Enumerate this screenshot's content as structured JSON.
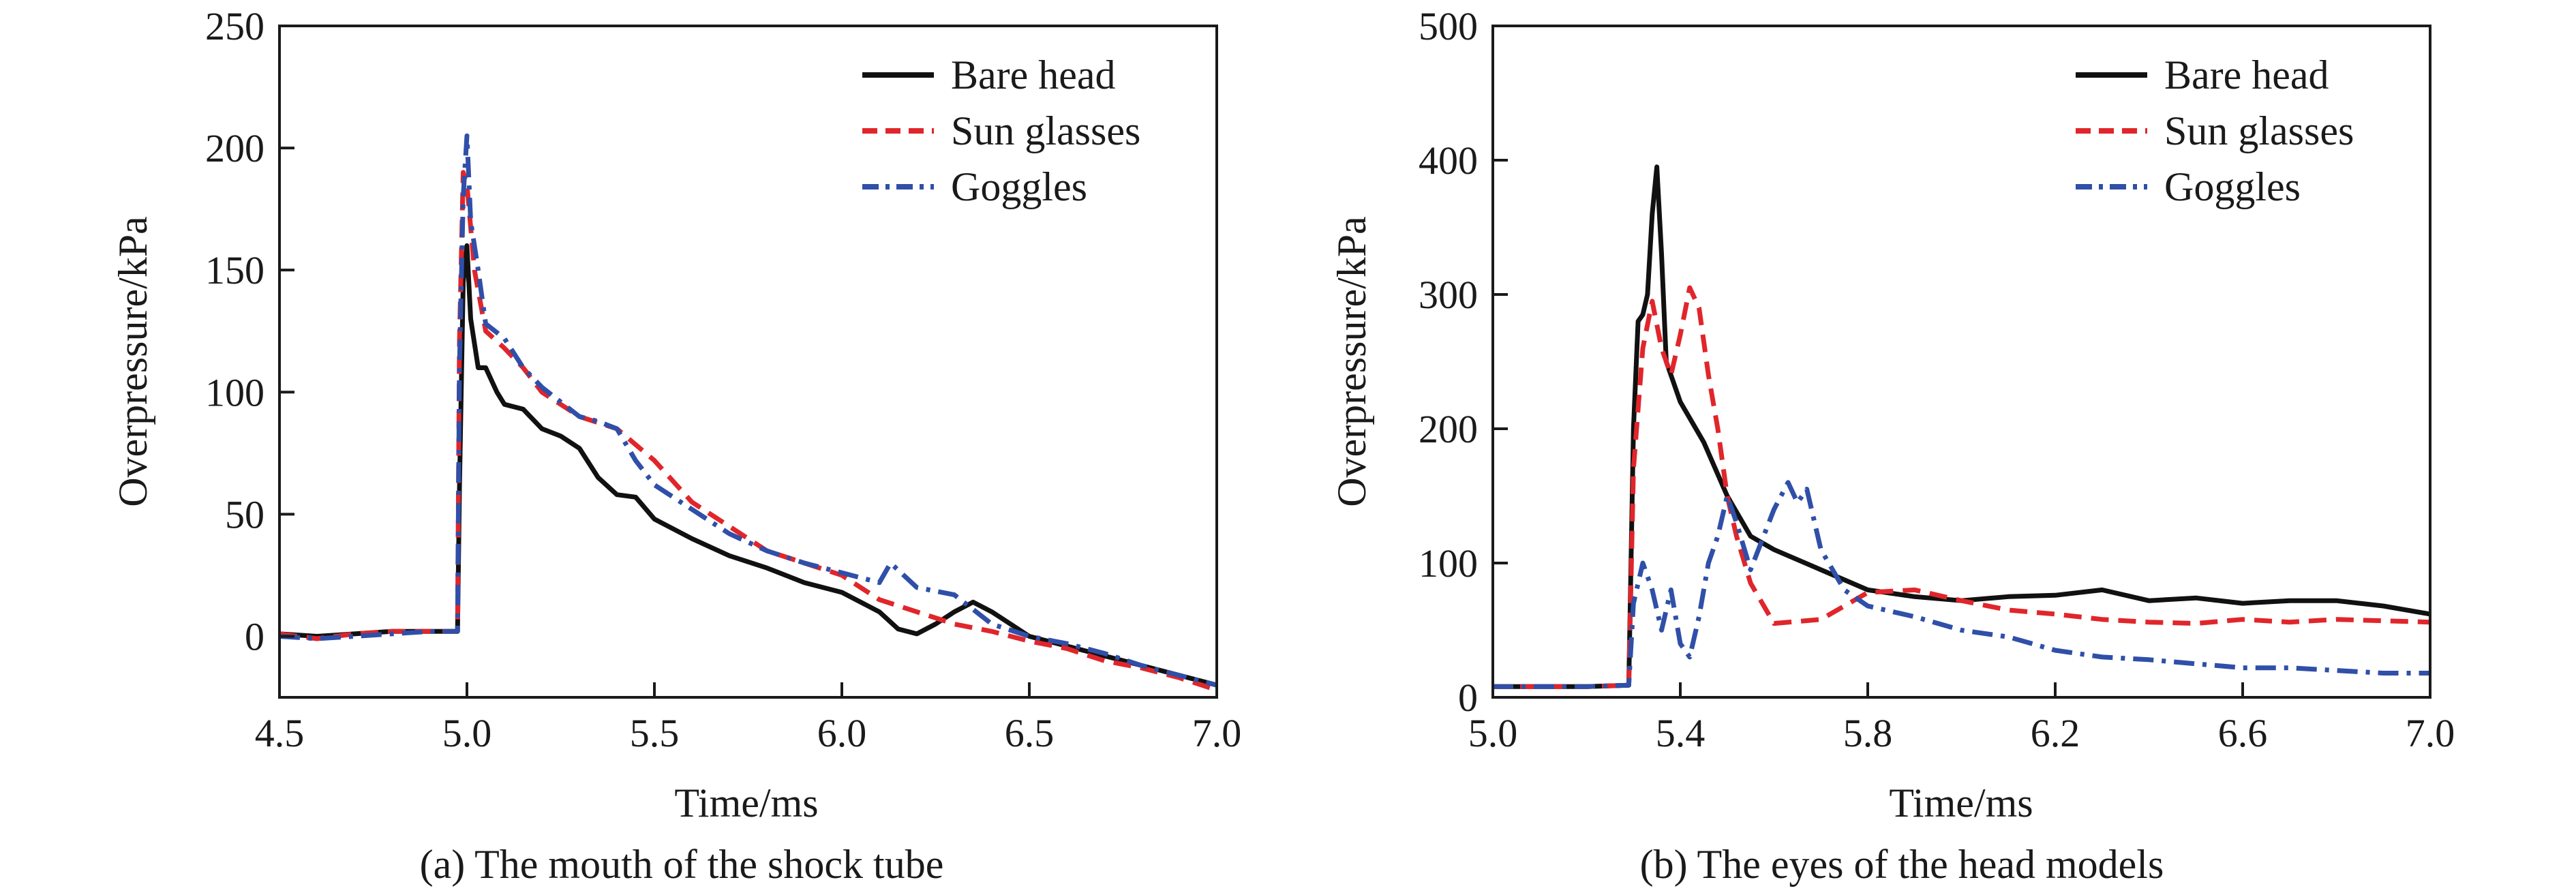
{
  "chart_data": [
    {
      "type": "line",
      "caption": "(a) The mouth of the shock tube",
      "xlabel": "Time/ms",
      "ylabel": "Overpressure/kPa",
      "xlim": [
        4.5,
        7.0
      ],
      "ylim": [
        -25,
        250
      ],
      "xticks": [
        "4.5",
        "5.0",
        "5.5",
        "6.0",
        "6.5",
        "7.0"
      ],
      "yticks": [
        "0",
        "50",
        "100",
        "150",
        "200",
        "250"
      ],
      "legend_position": "top-right",
      "grid": false,
      "series": [
        {
          "name": "Bare head",
          "color": "#111111",
          "style": "solid",
          "points": [
            [
              4.5,
              1
            ],
            [
              4.6,
              0
            ],
            [
              4.7,
              1
            ],
            [
              4.8,
              2
            ],
            [
              4.9,
              2
            ],
            [
              4.975,
              2
            ],
            [
              4.98,
              60
            ],
            [
              4.99,
              145
            ],
            [
              5.0,
              160
            ],
            [
              5.01,
              130
            ],
            [
              5.03,
              110
            ],
            [
              5.05,
              110
            ],
            [
              5.08,
              100
            ],
            [
              5.1,
              95
            ],
            [
              5.15,
              93
            ],
            [
              5.2,
              85
            ],
            [
              5.25,
              82
            ],
            [
              5.3,
              77
            ],
            [
              5.35,
              65
            ],
            [
              5.4,
              58
            ],
            [
              5.45,
              57
            ],
            [
              5.5,
              48
            ],
            [
              5.6,
              40
            ],
            [
              5.7,
              33
            ],
            [
              5.8,
              28
            ],
            [
              5.9,
              22
            ],
            [
              6.0,
              18
            ],
            [
              6.1,
              10
            ],
            [
              6.15,
              3
            ],
            [
              6.2,
              1
            ],
            [
              6.25,
              5
            ],
            [
              6.3,
              10
            ],
            [
              6.35,
              14
            ],
            [
              6.4,
              10
            ],
            [
              6.5,
              0
            ],
            [
              6.6,
              -4
            ],
            [
              6.7,
              -8
            ],
            [
              6.8,
              -12
            ],
            [
              6.9,
              -16
            ],
            [
              6.95,
              -18
            ],
            [
              7.0,
              -20
            ]
          ]
        },
        {
          "name": "Sun glasses",
          "color": "#e0262b",
          "style": "dashed",
          "points": [
            [
              4.5,
              1
            ],
            [
              4.6,
              -1
            ],
            [
              4.7,
              1
            ],
            [
              4.8,
              2
            ],
            [
              4.9,
              2
            ],
            [
              4.975,
              2
            ],
            [
              4.98,
              120
            ],
            [
              4.99,
              190
            ],
            [
              5.0,
              185
            ],
            [
              5.02,
              150
            ],
            [
              5.05,
              125
            ],
            [
              5.1,
              118
            ],
            [
              5.15,
              110
            ],
            [
              5.2,
              100
            ],
            [
              5.3,
              90
            ],
            [
              5.4,
              85
            ],
            [
              5.5,
              72
            ],
            [
              5.6,
              55
            ],
            [
              5.7,
              45
            ],
            [
              5.8,
              35
            ],
            [
              5.9,
              30
            ],
            [
              6.0,
              25
            ],
            [
              6.1,
              15
            ],
            [
              6.2,
              10
            ],
            [
              6.3,
              5
            ],
            [
              6.4,
              2
            ],
            [
              6.5,
              -2
            ],
            [
              6.6,
              -5
            ],
            [
              6.7,
              -10
            ],
            [
              6.8,
              -13
            ],
            [
              6.9,
              -17
            ],
            [
              7.0,
              -22
            ]
          ]
        },
        {
          "name": "Goggles",
          "color": "#2f4fa8",
          "style": "dashdot",
          "points": [
            [
              4.5,
              0
            ],
            [
              4.6,
              -1
            ],
            [
              4.7,
              0
            ],
            [
              4.8,
              1
            ],
            [
              4.9,
              2
            ],
            [
              4.975,
              2
            ],
            [
              4.98,
              110
            ],
            [
              4.99,
              180
            ],
            [
              5.0,
              205
            ],
            [
              5.01,
              170
            ],
            [
              5.03,
              150
            ],
            [
              5.05,
              128
            ],
            [
              5.1,
              122
            ],
            [
              5.15,
              110
            ],
            [
              5.2,
              102
            ],
            [
              5.3,
              90
            ],
            [
              5.35,
              88
            ],
            [
              5.4,
              85
            ],
            [
              5.45,
              72
            ],
            [
              5.5,
              62
            ],
            [
              5.6,
              52
            ],
            [
              5.7,
              42
            ],
            [
              5.8,
              35
            ],
            [
              5.9,
              30
            ],
            [
              6.0,
              26
            ],
            [
              6.1,
              22
            ],
            [
              6.13,
              30
            ],
            [
              6.2,
              20
            ],
            [
              6.3,
              17
            ],
            [
              6.4,
              5
            ],
            [
              6.5,
              0
            ],
            [
              6.6,
              -3
            ],
            [
              6.7,
              -7
            ],
            [
              6.8,
              -12
            ],
            [
              6.9,
              -16
            ],
            [
              7.0,
              -20
            ]
          ]
        }
      ]
    },
    {
      "type": "line",
      "caption": "(b) The eyes of the head models",
      "xlabel": "Time/ms",
      "ylabel": "Overpressure/kPa",
      "xlim": [
        5.0,
        7.0
      ],
      "ylim": [
        0,
        500
      ],
      "xticks": [
        "5.0",
        "5.4",
        "5.8",
        "6.2",
        "6.6",
        "7.0"
      ],
      "yticks": [
        "0",
        "100",
        "200",
        "300",
        "400",
        "500"
      ],
      "legend_position": "top-right",
      "grid": false,
      "series": [
        {
          "name": "Bare head",
          "color": "#111111",
          "style": "solid",
          "points": [
            [
              5.0,
              8
            ],
            [
              5.1,
              8
            ],
            [
              5.2,
              8
            ],
            [
              5.29,
              9
            ],
            [
              5.3,
              200
            ],
            [
              5.31,
              280
            ],
            [
              5.32,
              285
            ],
            [
              5.33,
              300
            ],
            [
              5.34,
              360
            ],
            [
              5.35,
              395
            ],
            [
              5.36,
              330
            ],
            [
              5.37,
              250
            ],
            [
              5.4,
              220
            ],
            [
              5.45,
              190
            ],
            [
              5.5,
              150
            ],
            [
              5.55,
              120
            ],
            [
              5.6,
              110
            ],
            [
              5.7,
              95
            ],
            [
              5.8,
              80
            ],
            [
              5.9,
              75
            ],
            [
              6.0,
              72
            ],
            [
              6.1,
              75
            ],
            [
              6.2,
              76
            ],
            [
              6.3,
              80
            ],
            [
              6.4,
              72
            ],
            [
              6.5,
              74
            ],
            [
              6.6,
              70
            ],
            [
              6.7,
              72
            ],
            [
              6.8,
              72
            ],
            [
              6.9,
              68
            ],
            [
              7.0,
              62
            ]
          ]
        },
        {
          "name": "Sun glasses",
          "color": "#e0262b",
          "style": "dashed",
          "points": [
            [
              5.0,
              8
            ],
            [
              5.1,
              8
            ],
            [
              5.2,
              8
            ],
            [
              5.29,
              9
            ],
            [
              5.3,
              170
            ],
            [
              5.32,
              260
            ],
            [
              5.34,
              295
            ],
            [
              5.36,
              260
            ],
            [
              5.38,
              240
            ],
            [
              5.4,
              270
            ],
            [
              5.42,
              305
            ],
            [
              5.44,
              290
            ],
            [
              5.46,
              240
            ],
            [
              5.48,
              200
            ],
            [
              5.5,
              150
            ],
            [
              5.52,
              120
            ],
            [
              5.55,
              85
            ],
            [
              5.6,
              55
            ],
            [
              5.7,
              58
            ],
            [
              5.8,
              78
            ],
            [
              5.9,
              80
            ],
            [
              6.0,
              72
            ],
            [
              6.1,
              65
            ],
            [
              6.2,
              62
            ],
            [
              6.3,
              58
            ],
            [
              6.4,
              56
            ],
            [
              6.5,
              55
            ],
            [
              6.6,
              58
            ],
            [
              6.7,
              56
            ],
            [
              6.8,
              58
            ],
            [
              6.9,
              57
            ],
            [
              7.0,
              56
            ]
          ]
        },
        {
          "name": "Goggles",
          "color": "#2f4fa8",
          "style": "dashdot",
          "points": [
            [
              5.0,
              8
            ],
            [
              5.1,
              8
            ],
            [
              5.2,
              8
            ],
            [
              5.29,
              9
            ],
            [
              5.3,
              70
            ],
            [
              5.32,
              100
            ],
            [
              5.34,
              80
            ],
            [
              5.36,
              50
            ],
            [
              5.38,
              80
            ],
            [
              5.4,
              40
            ],
            [
              5.42,
              30
            ],
            [
              5.44,
              60
            ],
            [
              5.46,
              100
            ],
            [
              5.48,
              120
            ],
            [
              5.5,
              150
            ],
            [
              5.52,
              130
            ],
            [
              5.55,
              95
            ],
            [
              5.6,
              140
            ],
            [
              5.63,
              160
            ],
            [
              5.65,
              145
            ],
            [
              5.67,
              155
            ],
            [
              5.7,
              110
            ],
            [
              5.75,
              80
            ],
            [
              5.8,
              68
            ],
            [
              5.9,
              60
            ],
            [
              6.0,
              50
            ],
            [
              6.1,
              45
            ],
            [
              6.2,
              35
            ],
            [
              6.3,
              30
            ],
            [
              6.4,
              28
            ],
            [
              6.5,
              25
            ],
            [
              6.6,
              22
            ],
            [
              6.7,
              22
            ],
            [
              6.8,
              20
            ],
            [
              6.9,
              18
            ],
            [
              7.0,
              18
            ]
          ]
        }
      ]
    }
  ]
}
